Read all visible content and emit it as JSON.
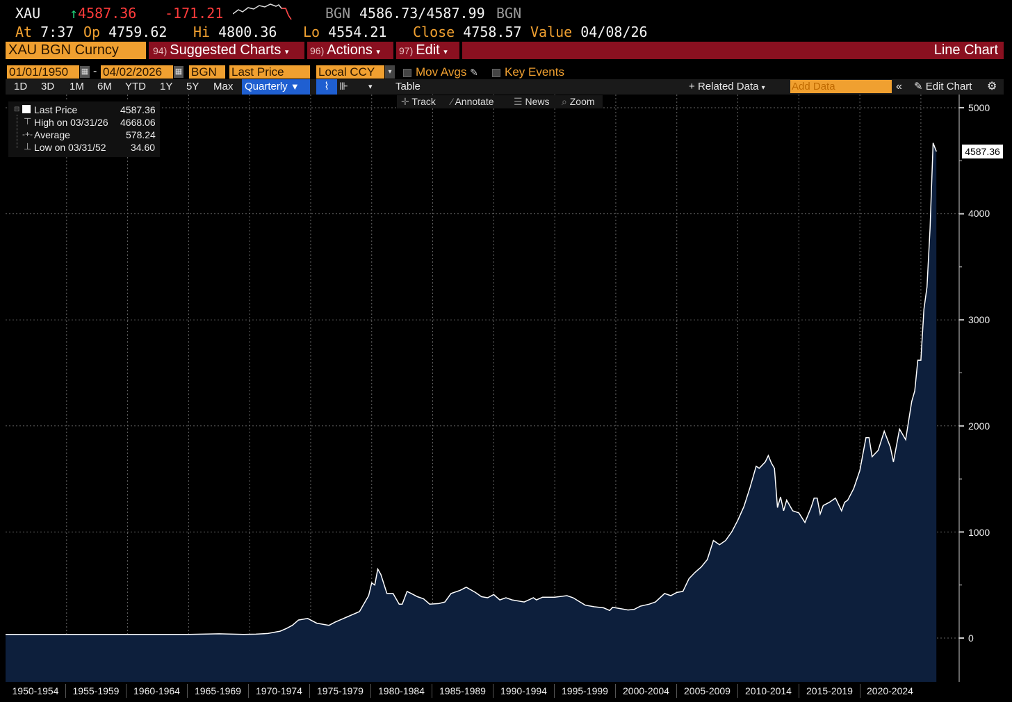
{
  "header": {
    "ticker": "XAU",
    "last_price": "4587.36",
    "change": "-171.21",
    "bgn_label": "BGN",
    "bid_ask": "4586.73/4587.99",
    "bgn_label_2": "BGN",
    "at_label": "At",
    "at_time": "7:37",
    "op_label": "Op",
    "op_value": "4759.62",
    "hi_label": "Hi",
    "hi_value": "4800.36",
    "lo_label": "Lo",
    "lo_value": "4554.21",
    "close_label": "Close",
    "close_value": "4758.57",
    "value_label": "Value",
    "value_date": "04/08/26"
  },
  "redbar": {
    "security": "XAU BGN Curncy",
    "suggested_num": "94)",
    "suggested_label": "Suggested Charts",
    "actions_num": "96)",
    "actions_label": "Actions",
    "edit_num": "97)",
    "edit_label": "Edit",
    "chart_type": "Line Chart"
  },
  "controls": {
    "start_date": "01/01/1950",
    "dash": "-",
    "end_date": "04/02/2026",
    "source": "BGN",
    "field": "Last Price",
    "currency": "Local CCY",
    "mov_avgs": "Mov Avgs",
    "key_events": "Key Events"
  },
  "toolbar": {
    "periods": [
      "1D",
      "3D",
      "1M",
      "6M",
      "YTD",
      "1Y",
      "5Y",
      "Max"
    ],
    "frequency": "Quarterly",
    "table": "Table",
    "related_data": "Related Data",
    "add_data_placeholder": "Add Data",
    "edit_chart": "Edit Chart"
  },
  "chart_tools": {
    "track": "Track",
    "annotate": "Annotate",
    "news": "News",
    "zoom": "Zoom"
  },
  "legend": {
    "last_price_label": "Last Price",
    "last_price_value": "4587.36",
    "high_label": "High on 03/31/26",
    "high_value": "4668.06",
    "average_label": "Average",
    "average_value": "578.24",
    "low_label": "Low on 03/31/52",
    "low_value": "34.60"
  },
  "colors": {
    "accent_orange": "#f0a030",
    "bar_red": "#8a1020",
    "chart_fill": "#0d1f3c",
    "line": "#ffffff",
    "down_red": "#ff3b3b",
    "up_green": "#1fd37a"
  },
  "chart_data": {
    "type": "area",
    "title": "",
    "xlabel": "",
    "ylabel": "",
    "ylim": [
      -400,
      5000
    ],
    "yticks": [
      "5000",
      "4000",
      "3000",
      "2000",
      "1000",
      "0"
    ],
    "last_value_label": "4587.36",
    "x_categories": [
      "1950-1954",
      "1955-1959",
      "1960-1964",
      "1965-1969",
      "1970-1974",
      "1975-1979",
      "1980-1984",
      "1985-1989",
      "1990-1994",
      "1995-1999",
      "2000-2004",
      "2005-2009",
      "2010-2014",
      "2015-2019",
      "2020-2024"
    ],
    "grid": true,
    "series": [
      {
        "name": "Last Price",
        "points": [
          [
            1950.0,
            35
          ],
          [
            1955.0,
            35
          ],
          [
            1960.0,
            35
          ],
          [
            1965.0,
            35
          ],
          [
            1967.5,
            40
          ],
          [
            1969.5,
            35
          ],
          [
            1970.5,
            37
          ],
          [
            1971.5,
            43
          ],
          [
            1972.5,
            65
          ],
          [
            1973.0,
            90
          ],
          [
            1973.5,
            120
          ],
          [
            1974.0,
            170
          ],
          [
            1974.75,
            185
          ],
          [
            1975.5,
            140
          ],
          [
            1976.5,
            120
          ],
          [
            1977.0,
            150
          ],
          [
            1978.0,
            200
          ],
          [
            1979.0,
            250
          ],
          [
            1979.75,
            400
          ],
          [
            1980.0,
            520
          ],
          [
            1980.25,
            500
          ],
          [
            1980.5,
            650
          ],
          [
            1980.75,
            600
          ],
          [
            1981.25,
            420
          ],
          [
            1981.75,
            420
          ],
          [
            1982.25,
            320
          ],
          [
            1982.5,
            320
          ],
          [
            1982.9,
            440
          ],
          [
            1983.25,
            420
          ],
          [
            1983.75,
            390
          ],
          [
            1984.25,
            370
          ],
          [
            1984.75,
            320
          ],
          [
            1985.5,
            325
          ],
          [
            1986.0,
            340
          ],
          [
            1986.5,
            420
          ],
          [
            1987.25,
            450
          ],
          [
            1987.75,
            480
          ],
          [
            1988.5,
            430
          ],
          [
            1989.0,
            390
          ],
          [
            1989.5,
            380
          ],
          [
            1990.0,
            410
          ],
          [
            1990.5,
            360
          ],
          [
            1991.0,
            380
          ],
          [
            1991.5,
            360
          ],
          [
            1992.0,
            350
          ],
          [
            1992.5,
            340
          ],
          [
            1993.25,
            380
          ],
          [
            1993.5,
            360
          ],
          [
            1994.0,
            385
          ],
          [
            1995.0,
            385
          ],
          [
            1996.0,
            400
          ],
          [
            1996.5,
            380
          ],
          [
            1997.0,
            345
          ],
          [
            1997.5,
            310
          ],
          [
            1998.25,
            295
          ],
          [
            1999.0,
            285
          ],
          [
            1999.5,
            260
          ],
          [
            1999.75,
            290
          ],
          [
            2000.25,
            280
          ],
          [
            2001.0,
            265
          ],
          [
            2001.5,
            270
          ],
          [
            2002.0,
            300
          ],
          [
            2002.75,
            320
          ],
          [
            2003.25,
            340
          ],
          [
            2004.0,
            420
          ],
          [
            2004.5,
            400
          ],
          [
            2005.0,
            430
          ],
          [
            2005.5,
            440
          ],
          [
            2006.0,
            560
          ],
          [
            2006.5,
            620
          ],
          [
            2007.0,
            670
          ],
          [
            2007.5,
            740
          ],
          [
            2008.0,
            920
          ],
          [
            2008.5,
            880
          ],
          [
            2009.0,
            920
          ],
          [
            2009.5,
            1000
          ],
          [
            2010.0,
            1110
          ],
          [
            2010.5,
            1240
          ],
          [
            2011.0,
            1420
          ],
          [
            2011.5,
            1620
          ],
          [
            2011.75,
            1600
          ],
          [
            2012.25,
            1660
          ],
          [
            2012.5,
            1720
          ],
          [
            2012.75,
            1650
          ],
          [
            2013.0,
            1600
          ],
          [
            2013.25,
            1230
          ],
          [
            2013.5,
            1330
          ],
          [
            2013.75,
            1200
          ],
          [
            2014.0,
            1300
          ],
          [
            2014.5,
            1200
          ],
          [
            2015.0,
            1180
          ],
          [
            2015.5,
            1090
          ],
          [
            2016.0,
            1230
          ],
          [
            2016.25,
            1320
          ],
          [
            2016.5,
            1320
          ],
          [
            2016.75,
            1170
          ],
          [
            2017.0,
            1250
          ],
          [
            2017.5,
            1280
          ],
          [
            2018.0,
            1320
          ],
          [
            2018.5,
            1200
          ],
          [
            2018.75,
            1280
          ],
          [
            2019.0,
            1300
          ],
          [
            2019.5,
            1410
          ],
          [
            2020.0,
            1580
          ],
          [
            2020.5,
            1890
          ],
          [
            2020.75,
            1890
          ],
          [
            2021.0,
            1710
          ],
          [
            2021.5,
            1770
          ],
          [
            2022.0,
            1950
          ],
          [
            2022.5,
            1800
          ],
          [
            2022.75,
            1660
          ],
          [
            2023.25,
            1970
          ],
          [
            2023.75,
            1870
          ],
          [
            2024.25,
            2230
          ],
          [
            2024.5,
            2330
          ],
          [
            2024.75,
            2620
          ],
          [
            2025.0,
            2620
          ],
          [
            2025.25,
            3100
          ],
          [
            2025.5,
            3310
          ],
          [
            2025.75,
            3860
          ],
          [
            2026.0,
            4668.06
          ],
          [
            2026.27,
            4587.36
          ]
        ]
      }
    ]
  }
}
